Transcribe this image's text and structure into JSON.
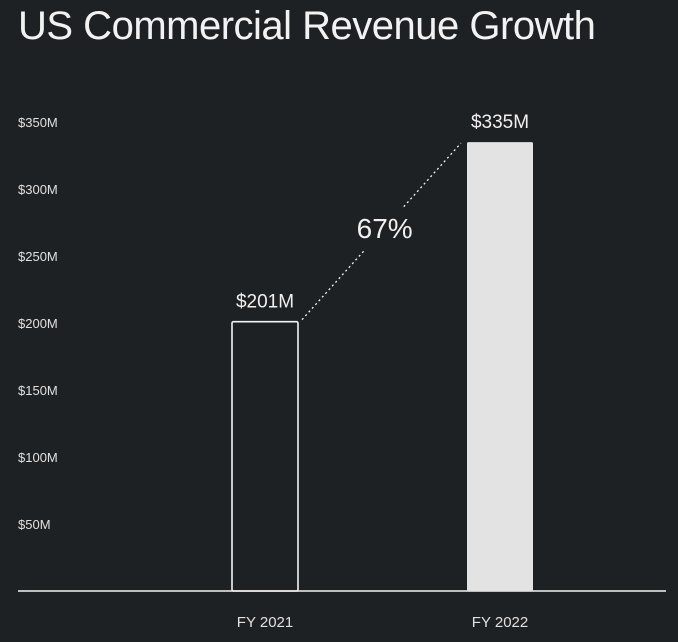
{
  "title": "US Commercial Revenue Growth",
  "colors": {
    "background": "#1e2124",
    "bar_outline": "#f2f2f2",
    "bar_fill_2022": "#e3e3e3",
    "text": "#f0f0f0"
  },
  "chart_data": {
    "type": "bar",
    "title": "US Commercial Revenue Growth",
    "categories": [
      "FY 2021",
      "FY 2022"
    ],
    "values": [
      201,
      335
    ],
    "value_labels": [
      "$201M",
      "$335M"
    ],
    "units": "$M",
    "ylim": [
      0,
      350
    ],
    "yticks": [
      50,
      100,
      150,
      200,
      250,
      300,
      350
    ],
    "ytick_labels": [
      "$50M",
      "$100M",
      "$150M",
      "$200M",
      "$250M",
      "$300M",
      "$350M"
    ],
    "grid": false,
    "annotation": {
      "text": "67%",
      "from": "FY 2021",
      "to": "FY 2022",
      "style": "dotted-connector"
    },
    "bar_styles": [
      "outline",
      "filled"
    ]
  }
}
